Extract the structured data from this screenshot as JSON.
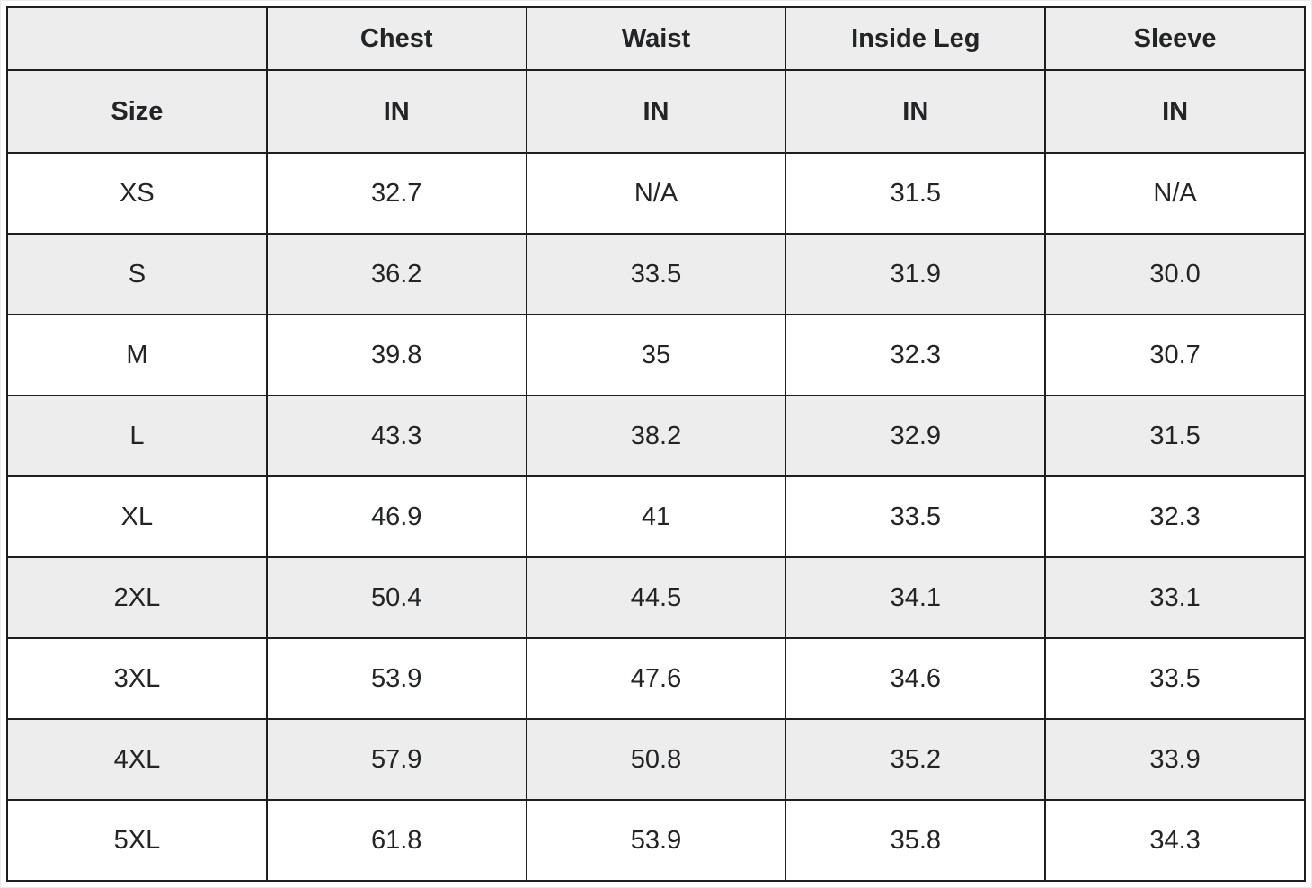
{
  "colors": {
    "header_bg": "#ededed",
    "row_alt_bg": "#ededed",
    "border": "#1e1e1e",
    "text": "#222426",
    "page_bg": "#ffffff"
  },
  "table": {
    "group_header": [
      "",
      "Chest",
      "Waist",
      "Inside Leg",
      "Sleeve"
    ],
    "unit_header": [
      "Size",
      "IN",
      "IN",
      "IN",
      "IN"
    ],
    "rows": [
      {
        "size": "XS",
        "values": [
          "32.7",
          "N/A",
          "31.5",
          "N/A"
        ]
      },
      {
        "size": "S",
        "values": [
          "36.2",
          "33.5",
          "31.9",
          "30.0"
        ]
      },
      {
        "size": "M",
        "values": [
          "39.8",
          "35",
          "32.3",
          "30.7"
        ]
      },
      {
        "size": "L",
        "values": [
          "43.3",
          "38.2",
          "32.9",
          "31.5"
        ]
      },
      {
        "size": "XL",
        "values": [
          "46.9",
          "41",
          "33.5",
          "32.3"
        ]
      },
      {
        "size": "2XL",
        "values": [
          "50.4",
          "44.5",
          "34.1",
          "33.1"
        ]
      },
      {
        "size": "3XL",
        "values": [
          "53.9",
          "47.6",
          "34.6",
          "33.5"
        ]
      },
      {
        "size": "4XL",
        "values": [
          "57.9",
          "50.8",
          "35.2",
          "33.9"
        ]
      },
      {
        "size": "5XL",
        "values": [
          "61.8",
          "53.9",
          "35.8",
          "34.3"
        ]
      }
    ]
  }
}
